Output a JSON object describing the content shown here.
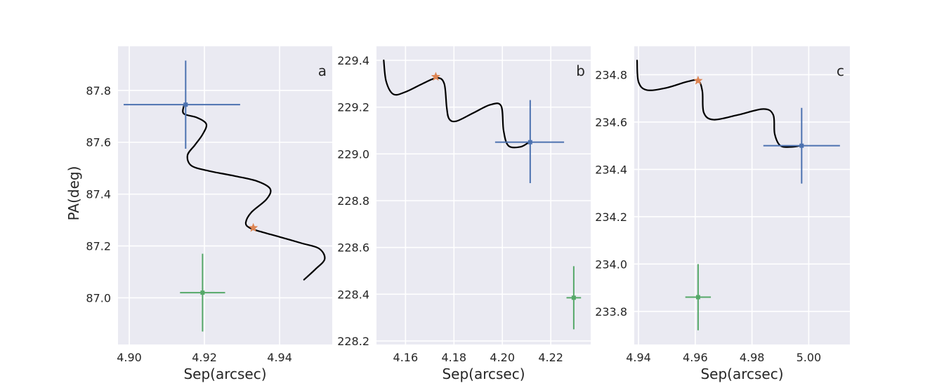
{
  "chart_data": [
    {
      "type": "scatter",
      "panel": "a",
      "xlabel": "Sep(arcsec)",
      "ylabel": "PA(deg)",
      "xlim": [
        4.897,
        4.954
      ],
      "ylim": [
        86.82,
        87.97
      ],
      "xticks": [
        4.9,
        4.92,
        4.94
      ],
      "xtick_labels": [
        "4.90",
        "4.92",
        "4.94"
      ],
      "yticks": [
        87.0,
        87.2,
        87.4,
        87.6,
        87.8
      ],
      "ytick_labels": [
        "87.0",
        "87.2",
        "87.4",
        "87.6",
        "87.8"
      ],
      "grid": true,
      "colors": {
        "blue": "#4c72b0",
        "green": "#55a868",
        "orange": "#dd8452",
        "curve": "#000000",
        "background": "#eaeaf2"
      },
      "orbit": [
        [
          4.9465,
          87.07
        ],
        [
          4.9495,
          87.11
        ],
        [
          4.952,
          87.15
        ],
        [
          4.9505,
          87.19
        ],
        [
          4.946,
          87.21
        ],
        [
          4.94,
          87.235
        ],
        [
          4.935,
          87.255
        ],
        [
          4.932,
          87.27
        ],
        [
          4.931,
          87.29
        ],
        [
          4.9325,
          87.33
        ],
        [
          4.9365,
          87.38
        ],
        [
          4.9375,
          87.42
        ],
        [
          4.934,
          87.45
        ],
        [
          4.928,
          87.47
        ],
        [
          4.921,
          87.49
        ],
        [
          4.9165,
          87.51
        ],
        [
          4.9155,
          87.55
        ],
        [
          4.9175,
          87.59
        ],
        [
          4.9195,
          87.63
        ],
        [
          4.9205,
          87.67
        ],
        [
          4.918,
          87.695
        ],
        [
          4.9145,
          87.71
        ],
        [
          4.9145,
          87.74
        ]
      ],
      "star": {
        "x": 4.933,
        "y": 87.27
      },
      "measurements": [
        {
          "name": "blue",
          "x": 4.915,
          "y": 87.745,
          "xerr": [
            4.8985,
            4.9295
          ],
          "yerr": [
            87.575,
            87.915
          ]
        },
        {
          "name": "green",
          "x": 4.9195,
          "y": 87.02,
          "xerr": [
            4.9135,
            4.9255
          ],
          "yerr": [
            86.87,
            87.17
          ]
        }
      ]
    },
    {
      "type": "scatter",
      "panel": "b",
      "xlabel": "Sep(arcsec)",
      "ylabel": "",
      "xlim": [
        4.148,
        4.2365
      ],
      "ylim": [
        228.185,
        229.46
      ],
      "xticks": [
        4.16,
        4.18,
        4.2,
        4.22
      ],
      "xtick_labels": [
        "4.16",
        "4.18",
        "4.20",
        "4.22"
      ],
      "yticks": [
        228.2,
        228.4,
        228.6,
        228.8,
        229.0,
        229.2,
        229.4
      ],
      "ytick_labels": [
        "228.2",
        "228.4",
        "228.6",
        "228.8",
        "229.0",
        "229.2",
        "229.4"
      ],
      "grid": true,
      "colors": {
        "blue": "#4c72b0",
        "green": "#55a868",
        "orange": "#dd8452",
        "curve": "#000000",
        "background": "#eaeaf2"
      },
      "orbit": [
        [
          4.151,
          229.4
        ],
        [
          4.152,
          229.31
        ],
        [
          4.155,
          229.255
        ],
        [
          4.16,
          229.265
        ],
        [
          4.167,
          229.3
        ],
        [
          4.173,
          229.325
        ],
        [
          4.176,
          229.3
        ],
        [
          4.177,
          229.2
        ],
        [
          4.178,
          229.15
        ],
        [
          4.181,
          229.14
        ],
        [
          4.188,
          229.175
        ],
        [
          4.195,
          229.21
        ],
        [
          4.1995,
          229.205
        ],
        [
          4.2005,
          229.1
        ],
        [
          4.2025,
          229.035
        ],
        [
          4.2075,
          229.03
        ],
        [
          4.211,
          229.05
        ]
      ],
      "star": {
        "x": 4.1725,
        "y": 229.33
      },
      "measurements": [
        {
          "name": "blue",
          "x": 4.2115,
          "y": 229.05,
          "xerr": [
            4.197,
            4.2255
          ],
          "yerr": [
            228.875,
            229.23
          ]
        },
        {
          "name": "green",
          "x": 4.2295,
          "y": 228.385,
          "xerr": [
            4.2265,
            4.2325
          ],
          "yerr": [
            228.25,
            228.52
          ]
        }
      ]
    },
    {
      "type": "scatter",
      "panel": "c",
      "xlabel": "Sep(arcsec)",
      "ylabel": "",
      "xlim": [
        4.9385,
        5.0145
      ],
      "ylim": [
        233.66,
        234.92
      ],
      "xticks": [
        4.94,
        4.96,
        4.98,
        5.0
      ],
      "xtick_labels": [
        "4.94",
        "4.96",
        "4.98",
        "5.00"
      ],
      "yticks": [
        233.8,
        234.0,
        234.2,
        234.4,
        234.6,
        234.8
      ],
      "ytick_labels": [
        "233.8",
        "234.0",
        "234.2",
        "234.4",
        "234.6",
        "234.8"
      ],
      "grid": true,
      "colors": {
        "blue": "#4c72b0",
        "green": "#55a868",
        "orange": "#dd8452",
        "curve": "#000000",
        "background": "#eaeaf2"
      },
      "orbit": [
        [
          4.9395,
          234.86
        ],
        [
          4.94,
          234.77
        ],
        [
          4.943,
          234.735
        ],
        [
          4.95,
          234.745
        ],
        [
          4.957,
          234.77
        ],
        [
          4.961,
          234.775
        ],
        [
          4.9625,
          234.73
        ],
        [
          4.963,
          234.64
        ],
        [
          4.9665,
          234.61
        ],
        [
          4.975,
          234.63
        ],
        [
          4.984,
          234.655
        ],
        [
          4.9875,
          234.63
        ],
        [
          4.988,
          234.55
        ],
        [
          4.99,
          234.5
        ],
        [
          4.994,
          234.495
        ],
        [
          4.997,
          234.5
        ]
      ],
      "star": {
        "x": 4.961,
        "y": 234.775
      },
      "measurements": [
        {
          "name": "blue",
          "x": 4.9975,
          "y": 234.5,
          "xerr": [
            4.984,
            5.011
          ],
          "yerr": [
            234.34,
            234.66
          ]
        },
        {
          "name": "green",
          "x": 4.961,
          "y": 233.86,
          "xerr": [
            4.9565,
            4.9655
          ],
          "yerr": [
            233.72,
            234.0
          ]
        }
      ]
    }
  ]
}
